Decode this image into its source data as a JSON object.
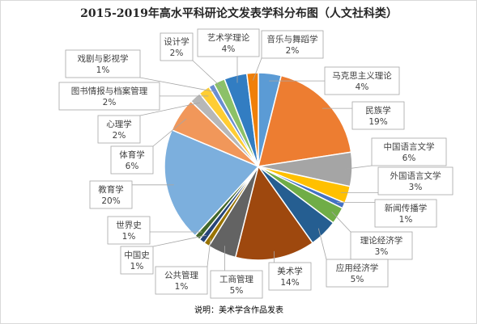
{
  "chart_data": {
    "type": "pie",
    "title": "2015-2019年高水平科研论文发表学科分布图（人文社科类）",
    "note": "说明：美术学含作品发表",
    "slices": [
      {
        "label": "马克思主义理论",
        "percent_label": "4%",
        "value": 4,
        "color": "#5b9bd5"
      },
      {
        "label": "民族学",
        "percent_label": "19%",
        "value": 19,
        "color": "#ed7d31"
      },
      {
        "label": "中国语言文学",
        "percent_label": "6%",
        "value": 6,
        "color": "#a5a5a5"
      },
      {
        "label": "外国语言文学",
        "percent_label": "3%",
        "value": 3,
        "color": "#ffc000"
      },
      {
        "label": "新闻传播学",
        "percent_label": "1%",
        "value": 1,
        "color": "#4472c4"
      },
      {
        "label": "理论经济学",
        "percent_label": "3%",
        "value": 3,
        "color": "#70ad47"
      },
      {
        "label": "应用经济学",
        "percent_label": "5%",
        "value": 5,
        "color": "#255e91"
      },
      {
        "label": "美术学",
        "percent_label": "14%",
        "value": 14,
        "color": "#9e480e"
      },
      {
        "label": "工商管理",
        "percent_label": "5%",
        "value": 5,
        "color": "#636363"
      },
      {
        "label": "公共管理",
        "percent_label": "1%",
        "value": 1,
        "color": "#997300"
      },
      {
        "label": "中国史",
        "percent_label": "1%",
        "value": 1,
        "color": "#264478"
      },
      {
        "label": "世界史",
        "percent_label": "1%",
        "value": 1,
        "color": "#43682b"
      },
      {
        "label": "教育学",
        "percent_label": "20%",
        "value": 20,
        "color": "#7cafdd"
      },
      {
        "label": "体育学",
        "percent_label": "6%",
        "value": 6,
        "color": "#f1975a"
      },
      {
        "label": "心理学",
        "percent_label": "2%",
        "value": 2,
        "color": "#b7b7b7"
      },
      {
        "label": "图书情报与档案管理",
        "percent_label": "2%",
        "value": 2,
        "color": "#ffcd33"
      },
      {
        "label": "戏剧与影视学",
        "percent_label": "1%",
        "value": 1,
        "color": "#698ed0"
      },
      {
        "label": "设计学",
        "percent_label": "2%",
        "value": 2,
        "color": "#8cc168"
      },
      {
        "label": "艺术学理论",
        "percent_label": "4%",
        "value": 4,
        "color": "#327dc2"
      },
      {
        "label": "音乐与舞蹈学",
        "percent_label": "2%",
        "value": 2,
        "color": "#f07f09"
      }
    ]
  }
}
